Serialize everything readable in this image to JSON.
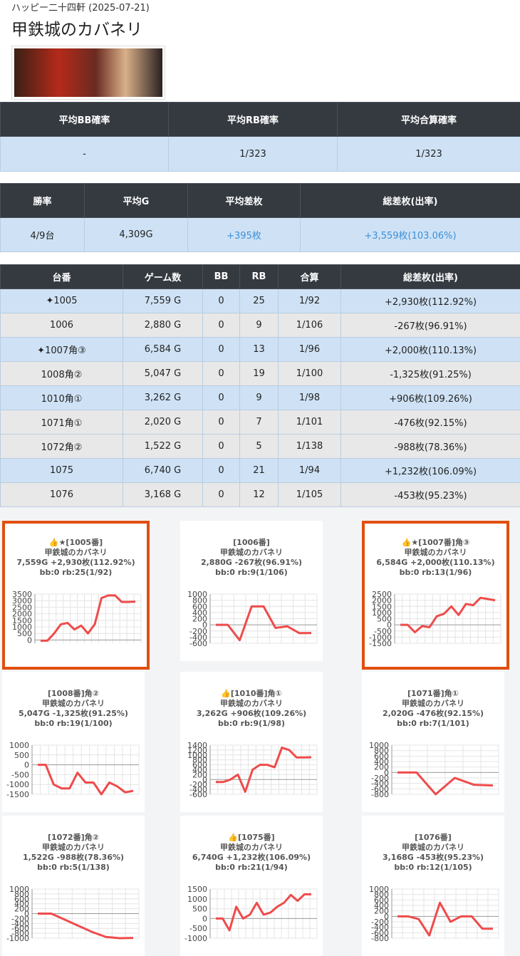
{
  "header": {
    "store": "ハッピー二十四軒 (2025-07-21)",
    "title": "甲鉄城のカバネリ"
  },
  "summary1": {
    "headers": [
      "平均BB確率",
      "平均RB確率",
      "平均合算確率"
    ],
    "row": [
      "-",
      "1/323",
      "1/323"
    ]
  },
  "summary2": {
    "headers": [
      "勝率",
      "平均G",
      "平均差枚",
      "総差枚(出率)"
    ],
    "row": [
      "4/9台",
      "4,309G",
      "+395枚",
      "+3,559枚(103.06%)"
    ]
  },
  "table": {
    "headers": [
      "台番",
      "ゲーム数",
      "BB",
      "RB",
      "合算",
      "総差枚(出率)"
    ],
    "rows": [
      {
        "color": "#cfe2f5",
        "cells": [
          "✦1005",
          "7,559 G",
          "0",
          "25",
          "1/92",
          "+2,930枚(112.92%)"
        ]
      },
      {
        "color": "#e8e8e8",
        "cells": [
          "1006",
          "2,880 G",
          "0",
          "9",
          "1/106",
          "-267枚(96.91%)"
        ]
      },
      {
        "color": "#cfe2f5",
        "cells": [
          "✦1007角③",
          "6,584 G",
          "0",
          "13",
          "1/96",
          "+2,000枚(110.13%)"
        ]
      },
      {
        "color": "#e8e8e8",
        "cells": [
          "1008角②",
          "5,047 G",
          "0",
          "19",
          "1/100",
          "-1,325枚(91.25%)"
        ]
      },
      {
        "color": "#cfe2f5",
        "cells": [
          "1010角①",
          "3,262 G",
          "0",
          "9",
          "1/98",
          "+906枚(109.26%)"
        ]
      },
      {
        "color": "#e8e8e8",
        "cells": [
          "1071角①",
          "2,020 G",
          "0",
          "7",
          "1/101",
          "-476枚(92.15%)"
        ]
      },
      {
        "color": "#e8e8e8",
        "cells": [
          "1072角②",
          "1,522 G",
          "0",
          "5",
          "1/138",
          "-988枚(78.36%)"
        ]
      },
      {
        "color": "#cfe2f5",
        "cells": [
          "1075",
          "6,740 G",
          "0",
          "21",
          "1/94",
          "+1,232枚(106.09%)"
        ]
      },
      {
        "color": "#e8e8e8",
        "cells": [
          "1076",
          "3,168 G",
          "0",
          "12",
          "1/105",
          "-453枚(95.23%)"
        ]
      }
    ]
  },
  "chart_data": [
    {
      "type": "line",
      "highlight": true,
      "lines": [
        "👍★[1005番]",
        "甲鉄城のカバネリ",
        "7,559G +2,930枚(112.92%)",
        "bb:0 rb:25(1/92)"
      ],
      "color": "#ef4b4b",
      "ylim": [
        -250,
        3500
      ],
      "yticks": [
        3500,
        3000,
        2500,
        2000,
        1500,
        1000,
        500,
        0
      ],
      "values": [
        -50,
        -50,
        500,
        1200,
        1300,
        800,
        1100,
        500,
        1200,
        3200,
        3400,
        3400,
        2900,
        2900,
        2930
      ]
    },
    {
      "type": "line",
      "highlight": false,
      "lines": [
        "[1006番]",
        "甲鉄城のカバネリ",
        "2,880G -267枚(96.91%)",
        "bb:0 rb:9(1/106)"
      ],
      "color": "#ef4b4b",
      "ylim": [
        -600,
        1000
      ],
      "yticks": [
        1000,
        800,
        600,
        400,
        200,
        0,
        -200,
        -400,
        -600
      ],
      "values": [
        0,
        0,
        -500,
        600,
        600,
        -100,
        -50,
        -270,
        -267
      ]
    },
    {
      "type": "line",
      "highlight": true,
      "lines": [
        "👍★[1007番]角③",
        "甲鉄城のカバネリ",
        "6,584G +2,000枚(110.13%)",
        "bb:0 rb:13(1/96)"
      ],
      "color": "#ef4b4b",
      "ylim": [
        -1500,
        2500
      ],
      "yticks": [
        2500,
        2000,
        1500,
        1000,
        500,
        0,
        -500,
        -1000,
        -1500
      ],
      "values": [
        0,
        0,
        -600,
        -100,
        -200,
        700,
        900,
        1500,
        800,
        1700,
        1600,
        2200,
        2100,
        2000
      ]
    },
    {
      "type": "line",
      "highlight": false,
      "lines": [
        "[1008番]角②",
        "甲鉄城のカバネリ",
        "5,047G -1,325枚(91.25%)",
        "bb:0 rb:19(1/100)"
      ],
      "color": "#ef4b4b",
      "ylim": [
        -1500,
        1000
      ],
      "yticks": [
        1000,
        500,
        0,
        -500,
        -1000,
        -1500
      ],
      "values": [
        0,
        0,
        -1000,
        -1200,
        -1200,
        -400,
        -900,
        -900,
        -1500,
        -900,
        -1100,
        -1400,
        -1325
      ]
    },
    {
      "type": "line",
      "highlight": false,
      "lines": [
        "👍[1010番]角①",
        "甲鉄城のカバネリ",
        "3,262G +906枚(109.26%)",
        "bb:0 rb:9(1/98)"
      ],
      "color": "#ef4b4b",
      "ylim": [
        -600,
        1400
      ],
      "yticks": [
        1400,
        1200,
        1000,
        800,
        600,
        400,
        200,
        0,
        -200,
        -400,
        -600
      ],
      "values": [
        -100,
        -100,
        0,
        200,
        -500,
        400,
        600,
        600,
        500,
        1300,
        1200,
        900,
        900,
        906
      ]
    },
    {
      "type": "line",
      "highlight": false,
      "lines": [
        "[1071番]角①",
        "甲鉄城のカバネリ",
        "2,020G -476枚(92.15%)",
        "bb:0 rb:7(1/101)"
      ],
      "color": "#ef4b4b",
      "ylim": [
        -800,
        1000
      ],
      "yticks": [
        1000,
        800,
        600,
        400,
        200,
        0,
        -200,
        -400,
        -600,
        -800
      ],
      "values": [
        0,
        0,
        -800,
        -200,
        -450,
        -476
      ]
    },
    {
      "type": "line",
      "highlight": false,
      "lines": [
        "[1072番]角②",
        "甲鉄城のカバネリ",
        "1,522G -988枚(78.36%)",
        "bb:0 rb:5(1/138)"
      ],
      "color": "#ef4b4b",
      "ylim": [
        -1000,
        1000
      ],
      "yticks": [
        1000,
        800,
        600,
        400,
        200,
        0,
        -200,
        -400,
        -600,
        -800,
        -1000
      ],
      "values": [
        0,
        0,
        -250,
        -500,
        -750,
        -950,
        -1000,
        -988
      ]
    },
    {
      "type": "line",
      "highlight": false,
      "lines": [
        "👍[1075番]",
        "甲鉄城のカバネリ",
        "6,740G +1,232枚(106.09%)",
        "bb:0 rb:21(1/94)"
      ],
      "color": "#ef4b4b",
      "ylim": [
        -1000,
        1500
      ],
      "yticks": [
        1500,
        1000,
        500,
        0,
        -500,
        -1000
      ],
      "values": [
        0,
        0,
        -600,
        600,
        0,
        200,
        800,
        200,
        300,
        600,
        800,
        1200,
        900,
        1232,
        1232
      ]
    },
    {
      "type": "line",
      "highlight": false,
      "lines": [
        "[1076番]",
        "甲鉄城のカバネリ",
        "3,168G -453枚(95.23%)",
        "bb:0 rb:12(1/105)"
      ],
      "color": "#ef4b4b",
      "ylim": [
        -800,
        1000
      ],
      "yticks": [
        1000,
        800,
        600,
        400,
        200,
        0,
        -200,
        -400,
        -600,
        -800
      ],
      "values": [
        0,
        0,
        -100,
        -700,
        500,
        -200,
        0,
        0,
        -450,
        -453
      ]
    }
  ]
}
